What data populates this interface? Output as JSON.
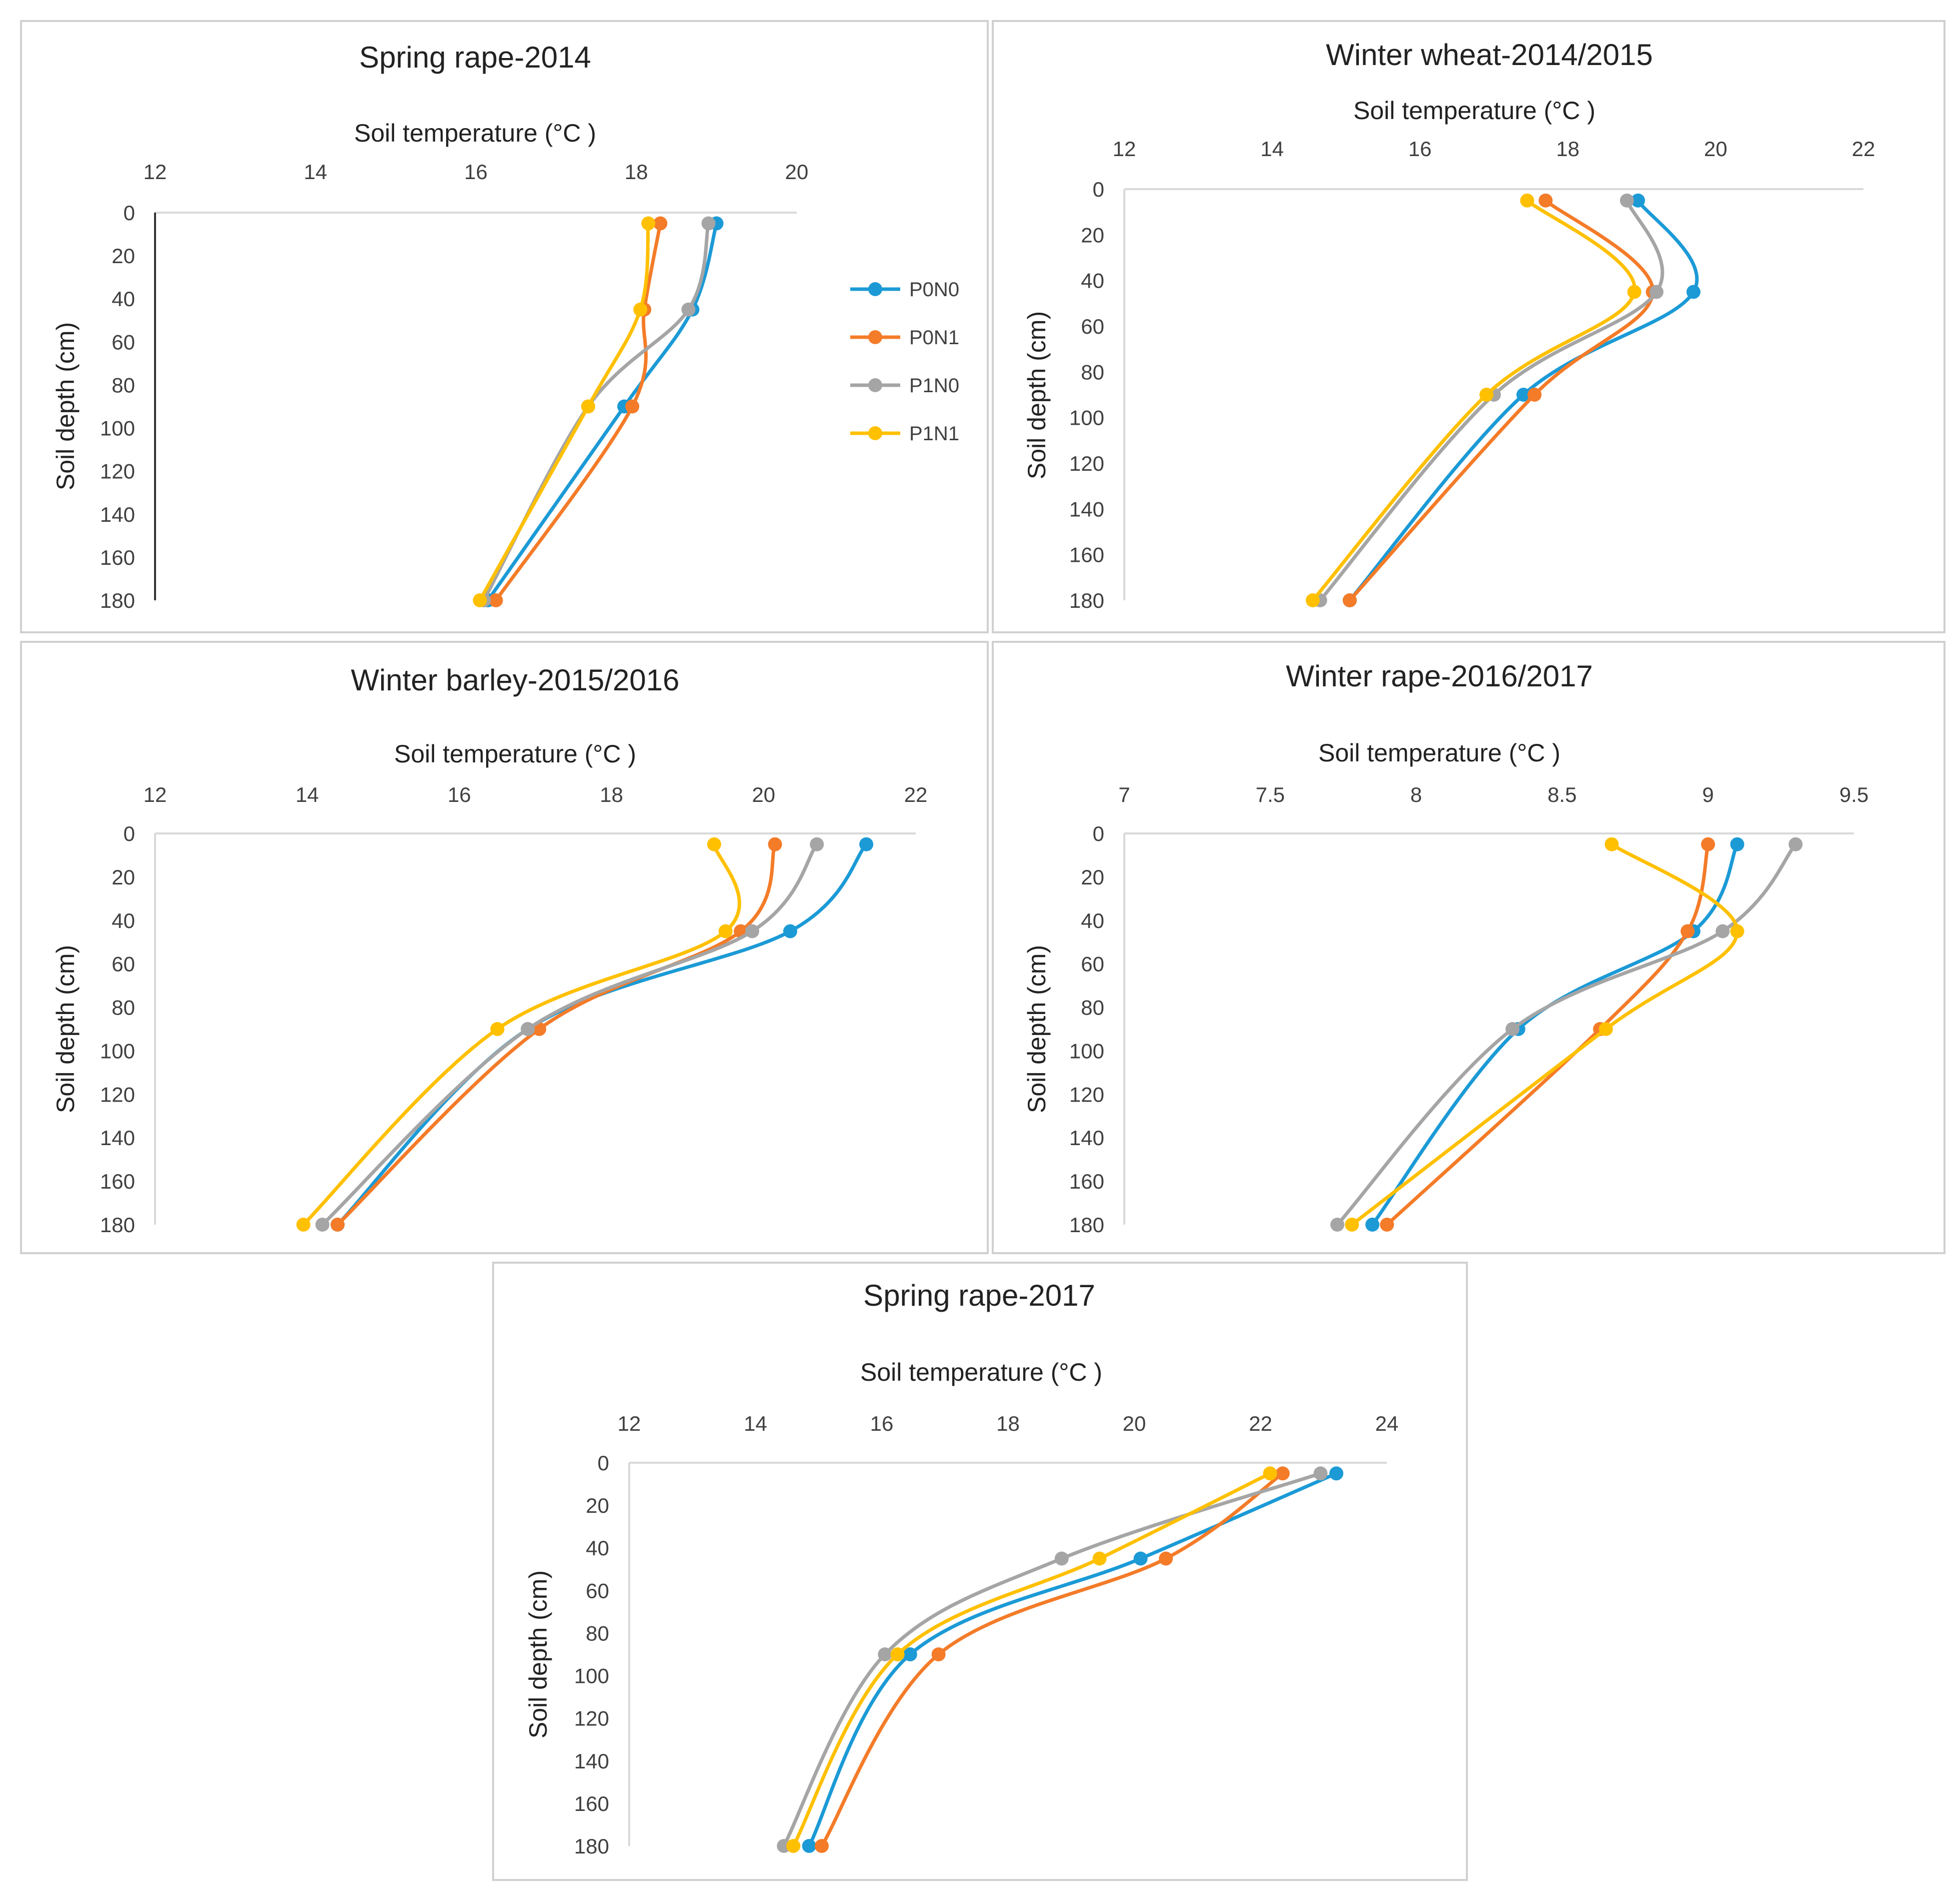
{
  "legend": {
    "items": [
      {
        "key": "P0N0",
        "label": "P0N0",
        "color": "#1b9ad6"
      },
      {
        "key": "P0N1",
        "label": "P0N1",
        "color": "#f47b28"
      },
      {
        "key": "P1N0",
        "label": "P1N0",
        "color": "#a5a5a5"
      },
      {
        "key": "P1N1",
        "label": "P1N1",
        "color": "#ffc000"
      }
    ]
  },
  "chart_data": [
    {
      "type": "line",
      "title": "Spring rape-2014",
      "xlabel": "Soil temperature (°C )",
      "ylabel": "Soil depth (cm)",
      "xlim": [
        12,
        20
      ],
      "xticks": [
        "12",
        "14",
        "16",
        "18",
        "20"
      ],
      "ylim": [
        0,
        180
      ],
      "yticks": [
        "0",
        "20",
        "40",
        "60",
        "80",
        "100",
        "120",
        "140",
        "160",
        "180"
      ],
      "depths": [
        5,
        45,
        90,
        180
      ],
      "series": [
        {
          "name": "P0N0",
          "values": [
            19.0,
            18.7,
            17.85,
            16.15
          ]
        },
        {
          "name": "P0N1",
          "values": [
            18.3,
            18.1,
            17.95,
            16.25
          ]
        },
        {
          "name": "P1N0",
          "values": [
            18.9,
            18.65,
            17.4,
            16.1
          ]
        },
        {
          "name": "P1N1",
          "values": [
            18.15,
            18.05,
            17.4,
            16.05
          ]
        }
      ]
    },
    {
      "type": "line",
      "title": "Winter wheat-2014/2015",
      "xlabel": "Soil temperature (°C )",
      "ylabel": "Soil depth (cm)",
      "xlim": [
        12,
        22
      ],
      "xticks": [
        "12",
        "14",
        "16",
        "18",
        "20",
        "22"
      ],
      "ylim": [
        0,
        180
      ],
      "yticks": [
        "0",
        "20",
        "40",
        "60",
        "80",
        "100",
        "120",
        "140",
        "160",
        "180"
      ],
      "depths": [
        5,
        45,
        90,
        180
      ],
      "series": [
        {
          "name": "P0N0",
          "values": [
            18.95,
            19.7,
            17.4,
            15.05
          ]
        },
        {
          "name": "P0N1",
          "values": [
            17.7,
            19.15,
            17.55,
            15.05
          ]
        },
        {
          "name": "P1N0",
          "values": [
            18.8,
            19.2,
            17.0,
            14.65
          ]
        },
        {
          "name": "P1N1",
          "values": [
            17.45,
            18.9,
            16.9,
            14.55
          ]
        }
      ]
    },
    {
      "type": "line",
      "title": "Winter barley-2015/2016",
      "xlabel": "Soil temperature (°C )",
      "ylabel": "Soil depth (cm)",
      "xlim": [
        12,
        22
      ],
      "xticks": [
        "12",
        "14",
        "16",
        "18",
        "20",
        "22"
      ],
      "ylim": [
        0,
        180
      ],
      "yticks": [
        "0",
        "20",
        "40",
        "60",
        "80",
        "100",
        "120",
        "140",
        "160",
        "180"
      ],
      "depths": [
        5,
        45,
        90,
        180
      ],
      "series": [
        {
          "name": "P0N0",
          "values": [
            21.35,
            20.35,
            16.9,
            14.4
          ]
        },
        {
          "name": "P0N1",
          "values": [
            20.15,
            19.7,
            17.05,
            14.4
          ]
        },
        {
          "name": "P1N0",
          "values": [
            20.7,
            19.85,
            16.9,
            14.2
          ]
        },
        {
          "name": "P1N1",
          "values": [
            19.35,
            19.5,
            16.5,
            13.95
          ]
        }
      ]
    },
    {
      "type": "line",
      "title": "Winter rape-2016/2017",
      "xlabel": "Soil temperature (°C )",
      "ylabel": "Soil depth (cm)",
      "xlim": [
        7,
        9.5
      ],
      "xticks": [
        "7",
        "7.5",
        "8",
        "8.5",
        "9",
        "9.5"
      ],
      "ylim": [
        0,
        180
      ],
      "yticks": [
        "0",
        "20",
        "40",
        "60",
        "80",
        "100",
        "120",
        "140",
        "160",
        "180"
      ],
      "depths": [
        5,
        45,
        90,
        180
      ],
      "series": [
        {
          "name": "P0N0",
          "values": [
            9.1,
            8.95,
            8.35,
            7.85
          ]
        },
        {
          "name": "P0N1",
          "values": [
            9.0,
            8.93,
            8.63,
            7.9
          ]
        },
        {
          "name": "P1N0",
          "values": [
            9.3,
            9.05,
            8.33,
            7.73
          ]
        },
        {
          "name": "P1N1",
          "values": [
            8.67,
            9.1,
            8.65,
            7.78
          ]
        }
      ]
    },
    {
      "type": "line",
      "title": "Spring rape-2017",
      "xlabel": "Soil temperature (°C )",
      "ylabel": "Soil depth (cm)",
      "xlim": [
        12,
        24
      ],
      "xticks": [
        "12",
        "14",
        "16",
        "18",
        "20",
        "22",
        "24"
      ],
      "ylim": [
        0,
        180
      ],
      "yticks": [
        "0",
        "20",
        "40",
        "60",
        "80",
        "100",
        "120",
        "140",
        "160",
        "180"
      ],
      "depths": [
        5,
        45,
        90,
        180
      ],
      "series": [
        {
          "name": "P0N0",
          "values": [
            23.2,
            20.1,
            16.45,
            14.85
          ]
        },
        {
          "name": "P0N1",
          "values": [
            22.35,
            20.5,
            16.9,
            15.05
          ]
        },
        {
          "name": "P1N0",
          "values": [
            22.95,
            18.85,
            16.05,
            14.45
          ]
        },
        {
          "name": "P1N1",
          "values": [
            22.15,
            19.45,
            16.25,
            14.6
          ]
        }
      ]
    }
  ]
}
